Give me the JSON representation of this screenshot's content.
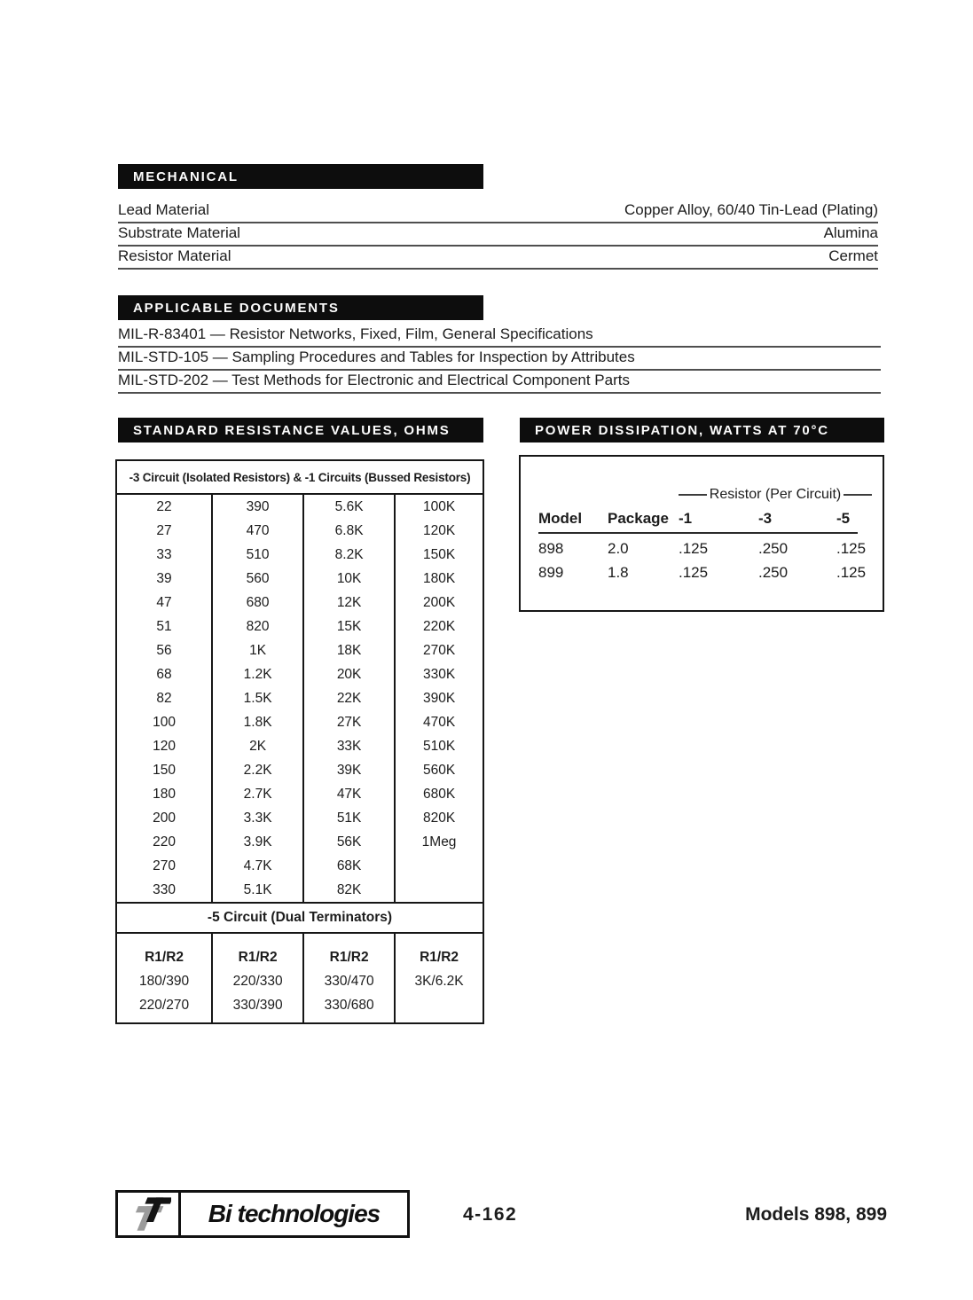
{
  "colors": {
    "bar_bg": "#0d0d0d",
    "ink": "#1c1c1c",
    "rule_gray": "#4f4f4f",
    "logo_gray": "#9b9b9b"
  },
  "mechanical": {
    "title": "MECHANICAL",
    "rows": [
      {
        "label": "Lead Material",
        "value": "Copper Alloy, 60/40 Tin-Lead (Plating)"
      },
      {
        "label": "Substrate Material",
        "value": "Alumina"
      },
      {
        "label": "Resistor Material",
        "value": "Cermet"
      }
    ]
  },
  "applicable_documents": {
    "title": "APPLICABLE DOCUMENTS",
    "items": [
      "MIL-R-83401 — Resistor Networks, Fixed, Film, General Specifications",
      "MIL-STD-105 — Sampling Procedures and Tables for Inspection by Attributes",
      "MIL-STD-202 — Test Methods for Electronic and Electrical Component Parts"
    ]
  },
  "standard_resistance": {
    "title": "STANDARD RESISTANCE VALUES, OHMS",
    "table_header": "-3 Circuit (Isolated Resistors) & -1 Circuits (Bussed Resistors)",
    "columns": [
      [
        "22",
        "27",
        "33",
        "39",
        "47",
        "51",
        "56",
        "68",
        "82",
        "100",
        "120",
        "150",
        "180",
        "200",
        "220",
        "270",
        "330"
      ],
      [
        "390",
        "470",
        "510",
        "560",
        "680",
        "820",
        "1K",
        "1.2K",
        "1.5K",
        "1.8K",
        "2K",
        "2.2K",
        "2.7K",
        "3.3K",
        "3.9K",
        "4.7K",
        "5.1K"
      ],
      [
        "5.6K",
        "6.8K",
        "8.2K",
        "10K",
        "12K",
        "15K",
        "18K",
        "20K",
        "22K",
        "27K",
        "33K",
        "39K",
        "47K",
        "51K",
        "56K",
        "68K",
        "82K"
      ],
      [
        "100K",
        "120K",
        "150K",
        "180K",
        "200K",
        "220K",
        "270K",
        "330K",
        "390K",
        "470K",
        "510K",
        "560K",
        "680K",
        "820K",
        "1Meg",
        "",
        ""
      ]
    ],
    "dual_header": "-5 Circuit (Dual Terminators)",
    "dual_col_header": "R1/R2",
    "dual_rows": [
      [
        "180/390",
        "220/330",
        "330/470",
        "3K/6.2K"
      ],
      [
        "220/270",
        "330/390",
        "330/680",
        ""
      ]
    ]
  },
  "power_dissipation": {
    "title": "POWER DISSIPATION, WATTS AT 70°C",
    "span_header": "Resistor (Per Circuit)",
    "columns": [
      "Model",
      "Package",
      "-1",
      "-3",
      "-5"
    ],
    "rows": [
      [
        "898",
        "2.0",
        ".125",
        ".250",
        ".125"
      ],
      [
        "899",
        "1.8",
        ".125",
        ".250",
        ".125"
      ]
    ]
  },
  "footer": {
    "logo_text": "Bi technologies",
    "page_number": "4-162",
    "models": "Models 898, 899"
  }
}
